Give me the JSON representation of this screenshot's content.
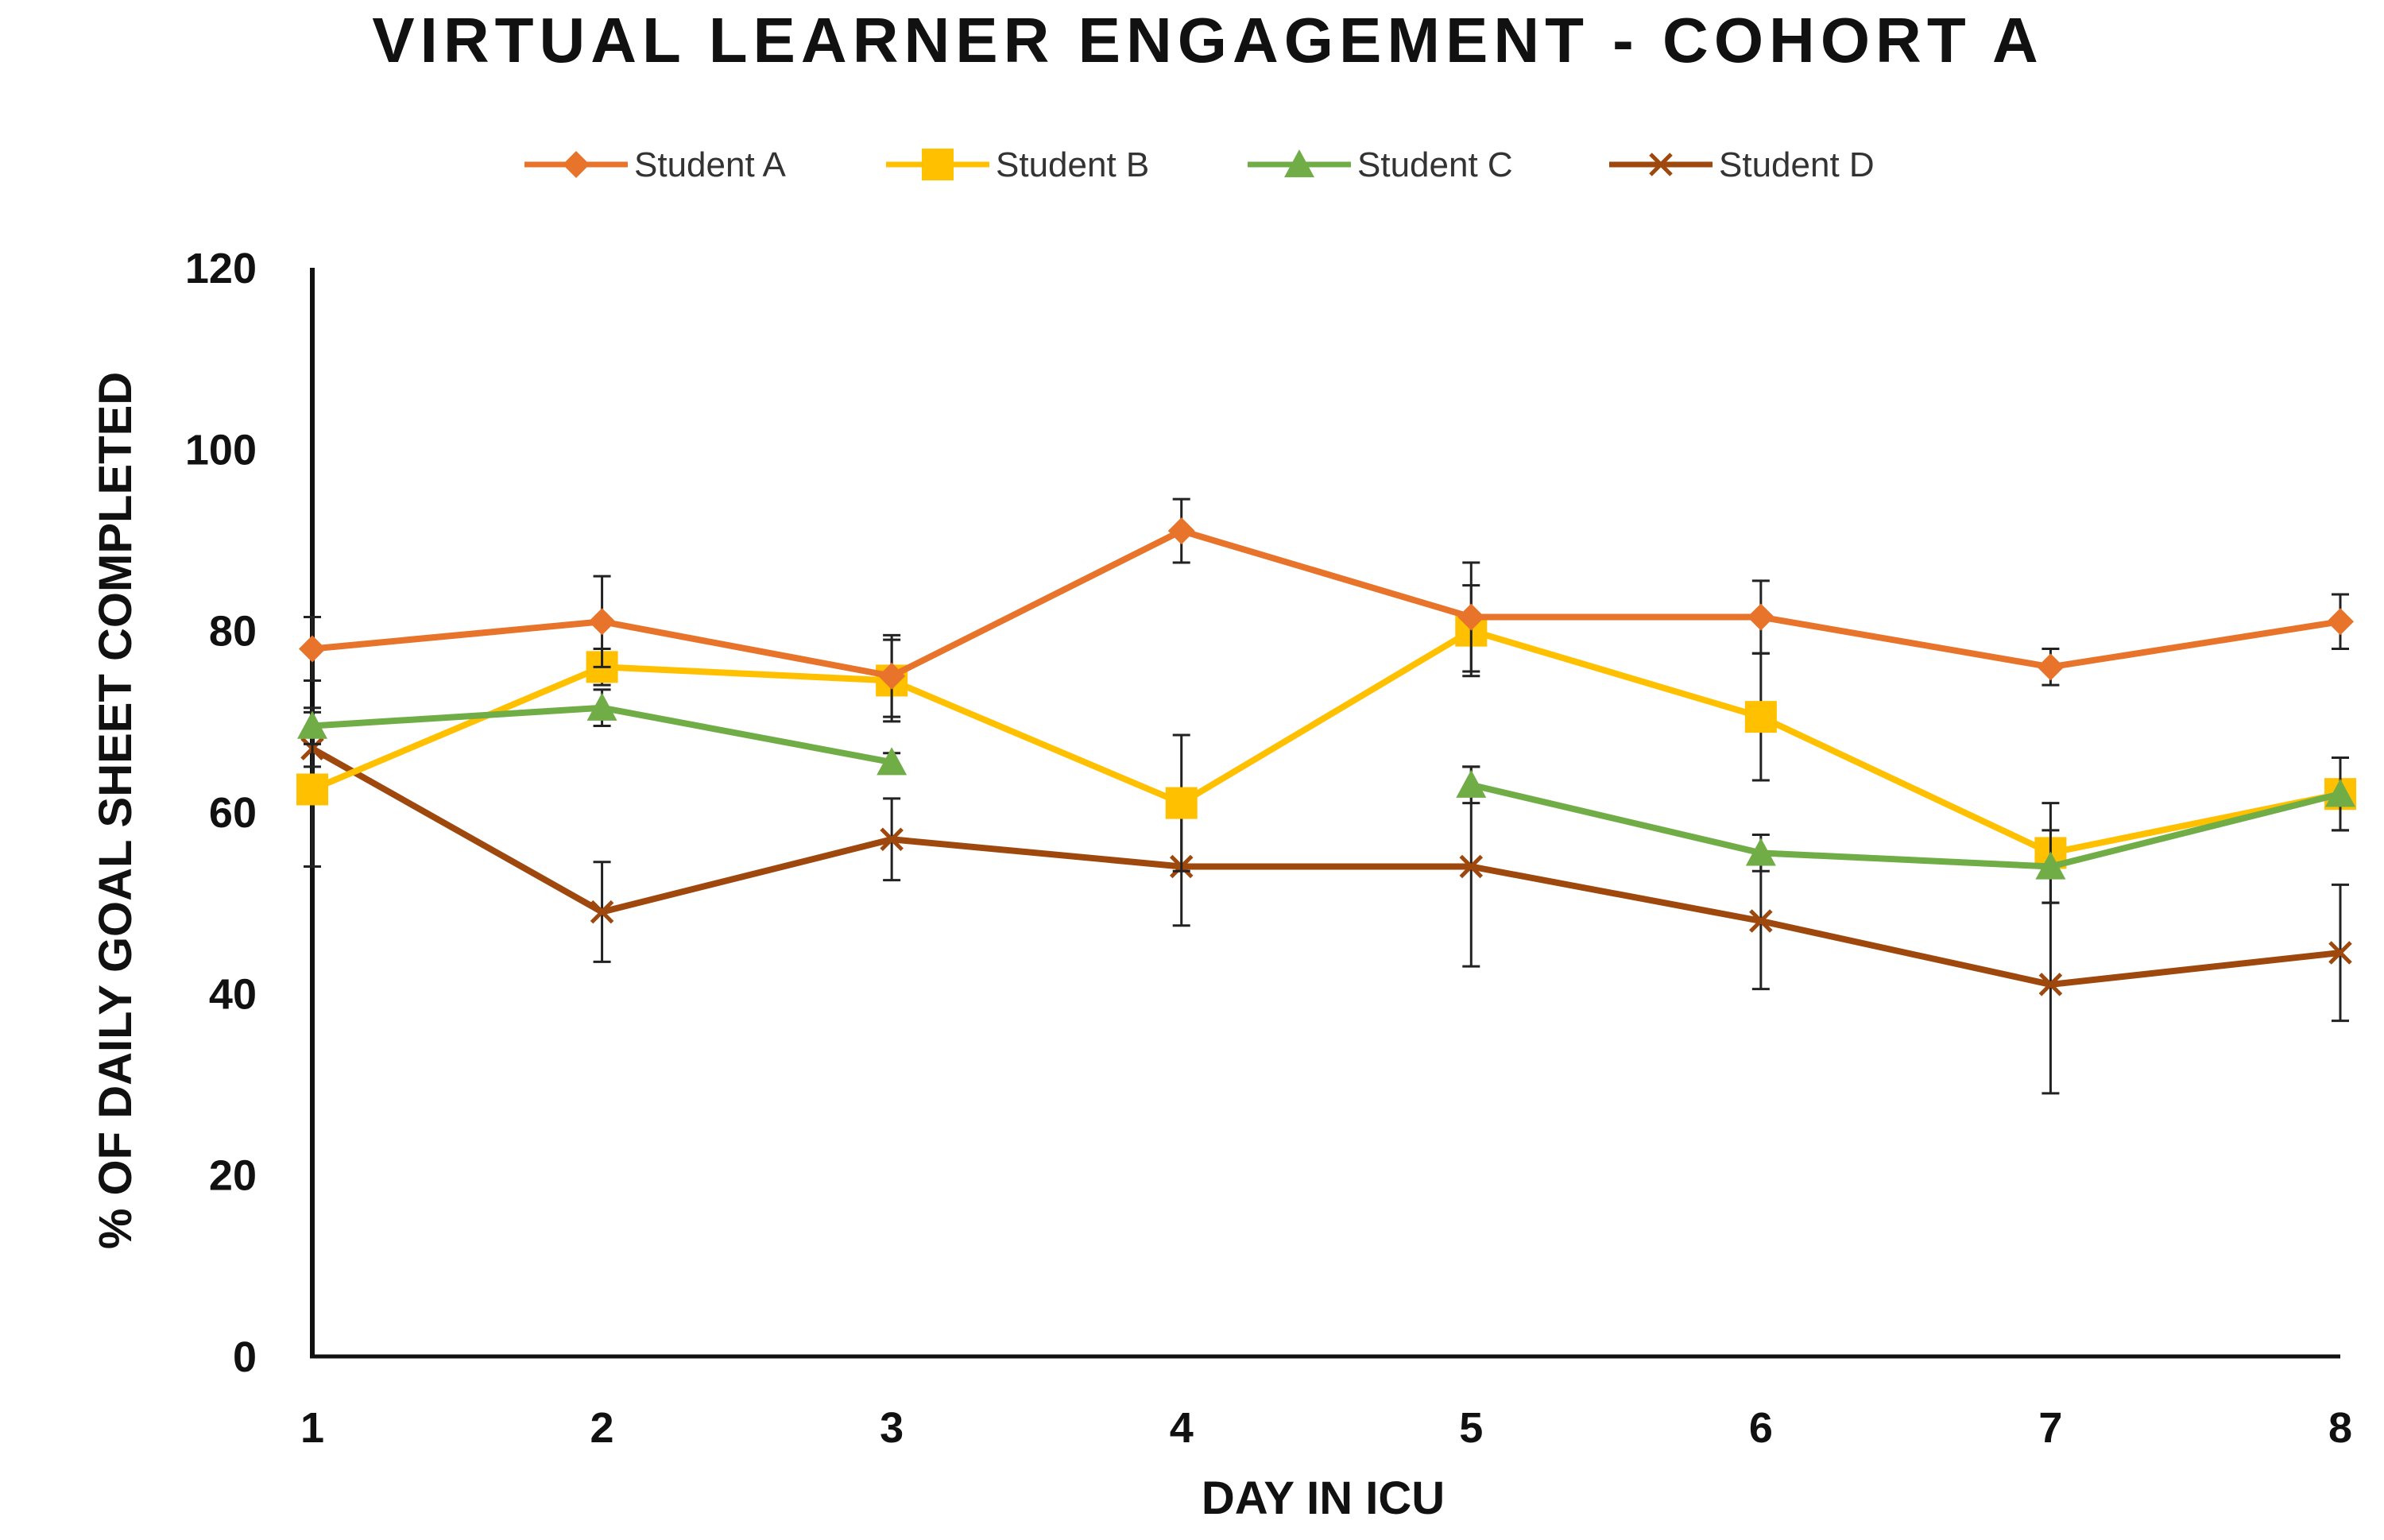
{
  "chart_data": {
    "type": "line",
    "title": "VIRTUAL LEARNER ENGAGEMENT - COHORT A",
    "xlabel": "DAY IN ICU",
    "ylabel": "% OF DAILY GOAL SHEET COMPLETED",
    "x": [
      1,
      2,
      3,
      4,
      5,
      6,
      7,
      8
    ],
    "x_tick_labels": [
      "1",
      "2",
      "3",
      "4",
      "5",
      "6",
      "7",
      "8"
    ],
    "ylim": [
      0,
      120
    ],
    "y_ticks": [
      0,
      20,
      40,
      60,
      80,
      100,
      120
    ],
    "y_tick_labels": [
      "0",
      "20",
      "40",
      "60",
      "80",
      "100",
      "120"
    ],
    "grid": false,
    "legend_position": "top",
    "series": [
      {
        "name": "Student A",
        "color": "#E8732A",
        "marker": "diamond",
        "values": [
          78,
          81,
          75,
          91,
          81.5,
          81.5,
          76,
          81
        ],
        "error": [
          3.5,
          5,
          4.5,
          3.5,
          6,
          4,
          2,
          3
        ]
      },
      {
        "name": "Student B",
        "color": "#FFC000",
        "marker": "square",
        "values": [
          62.5,
          76,
          74.5,
          61,
          80,
          70.5,
          55.5,
          62
        ],
        "error": [
          8.5,
          2,
          4.5,
          7.5,
          5,
          7,
          5.5,
          4
        ]
      },
      {
        "name": "Student C",
        "color": "#70AD47",
        "marker": "triangle",
        "values": [
          69.5,
          71.5,
          65.5,
          null,
          63,
          55.5,
          54,
          62
        ],
        "error": [
          2,
          2,
          1,
          null,
          2,
          2,
          4,
          4
        ]
      },
      {
        "name": "Student D",
        "color": "#9E480E",
        "marker": "x",
        "values": [
          67,
          49,
          57,
          54,
          54,
          48,
          41,
          44.5
        ],
        "error": [
          2,
          5.5,
          4.5,
          6.5,
          11,
          7.5,
          12,
          7.5
        ]
      }
    ]
  }
}
